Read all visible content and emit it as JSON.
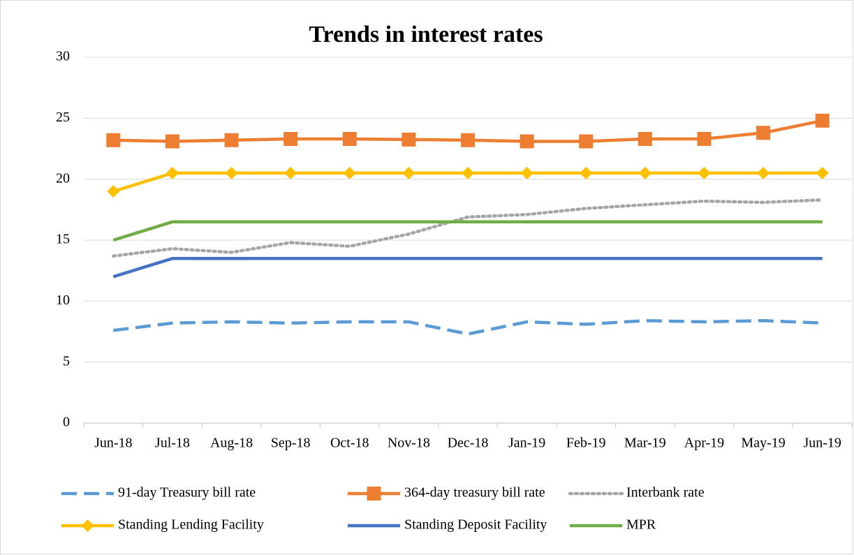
{
  "chart_data": {
    "type": "line",
    "title": "Trends in interest rates",
    "categories": [
      "Jun-18",
      "Jul-18",
      "Aug-18",
      "Sep-18",
      "Oct-18",
      "Nov-18",
      "Dec-18",
      "Jan-19",
      "Feb-19",
      "Mar-19",
      "Apr-19",
      "May-19",
      "Jun-19"
    ],
    "series": [
      {
        "name": "91-day Treasury bill rate",
        "color": "#5b9bd5",
        "dash": "dashed",
        "marker": "none",
        "values": [
          7.6,
          8.2,
          8.3,
          8.2,
          8.3,
          8.3,
          7.3,
          8.3,
          8.1,
          8.4,
          8.3,
          8.4,
          8.2
        ]
      },
      {
        "name": "364-day treasury bill rate",
        "color": "#ed7d31",
        "dash": "solid",
        "marker": "square",
        "values": [
          23.2,
          23.1,
          23.2,
          23.3,
          23.3,
          23.25,
          23.2,
          23.1,
          23.1,
          23.3,
          23.3,
          23.8,
          24.8
        ]
      },
      {
        "name": "Interbank rate",
        "color": "#a5a5a5",
        "dash": "dotted",
        "marker": "none",
        "values": [
          13.7,
          14.3,
          14.0,
          14.8,
          14.5,
          15.5,
          16.9,
          17.1,
          17.6,
          17.9,
          18.2,
          18.1,
          18.3
        ]
      },
      {
        "name": "Standing Lending Facility",
        "color": "#ffc000",
        "dash": "solid",
        "marker": "diamond",
        "values": [
          19,
          20.5,
          20.5,
          20.5,
          20.5,
          20.5,
          20.5,
          20.5,
          20.5,
          20.5,
          20.5,
          20.5,
          20.5
        ]
      },
      {
        "name": "Standing Deposit Facility",
        "color": "#4472c4",
        "dash": "solid",
        "marker": "none",
        "values": [
          12,
          13.5,
          13.5,
          13.5,
          13.5,
          13.5,
          13.5,
          13.5,
          13.5,
          13.5,
          13.5,
          13.5,
          13.5
        ]
      },
      {
        "name": "MPR",
        "color": "#70ad47",
        "dash": "solid",
        "marker": "none",
        "values": [
          15,
          16.5,
          16.5,
          16.5,
          16.5,
          16.5,
          16.5,
          16.5,
          16.5,
          16.5,
          16.5,
          16.5,
          16.5
        ]
      }
    ],
    "ylim": [
      0,
      30
    ],
    "yticks": [
      0,
      5,
      10,
      15,
      20,
      25,
      30
    ],
    "grid": true,
    "legend": "bottom"
  }
}
